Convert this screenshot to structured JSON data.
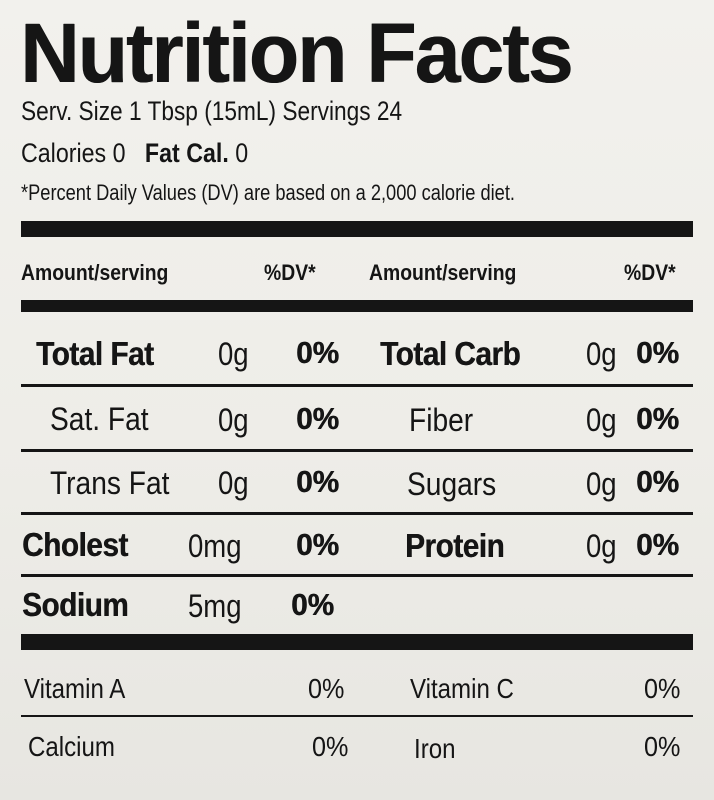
{
  "title": "Nutrition Facts",
  "serving": "Serv. Size 1 Tbsp (15mL) Servings 24",
  "calories": {
    "label": "Calories",
    "value": "0",
    "fat_label": "Fat Cal.",
    "fat_value": "0"
  },
  "dv_note": "*Percent Daily Values (DV) are based on a 2,000 calorie diet.",
  "headers": {
    "left_amount": "Amount/serving",
    "left_dv": "%DV*",
    "right_amount": "Amount/serving",
    "right_dv": "%DV*"
  },
  "nutrients": {
    "total_fat": {
      "label": "Total Fat",
      "amount": "0g",
      "dv": "0%"
    },
    "sat_fat": {
      "label": "Sat. Fat",
      "amount": "0g",
      "dv": "0%"
    },
    "trans_fat": {
      "label": "Trans Fat",
      "amount": "0g"
    },
    "trans_fat_dv": "0%",
    "cholest": {
      "label": "Cholest",
      "amount": "0mg",
      "dv": "0%"
    },
    "sodium": {
      "label": "Sodium",
      "amount": "5mg",
      "dv": "0%"
    },
    "total_carb": {
      "label": "Total Carb",
      "amount": "0g",
      "dv": "0%"
    },
    "fiber": {
      "label": "Fiber",
      "amount": "0g",
      "dv": "0%"
    },
    "sugars": {
      "label": "Sugars",
      "amount": "0g",
      "dv": "0%"
    },
    "protein": {
      "label": "Protein",
      "amount": "0g",
      "dv": "0%"
    }
  },
  "vitamins": {
    "vitamin_a": {
      "label": "Vitamin A",
      "dv": "0%"
    },
    "vitamin_c": {
      "label": "Vitamin C",
      "dv": "0%"
    },
    "calcium": {
      "label": "Calcium",
      "dv": "0%"
    },
    "iron": {
      "label": "Iron",
      "dv": "0%"
    }
  }
}
